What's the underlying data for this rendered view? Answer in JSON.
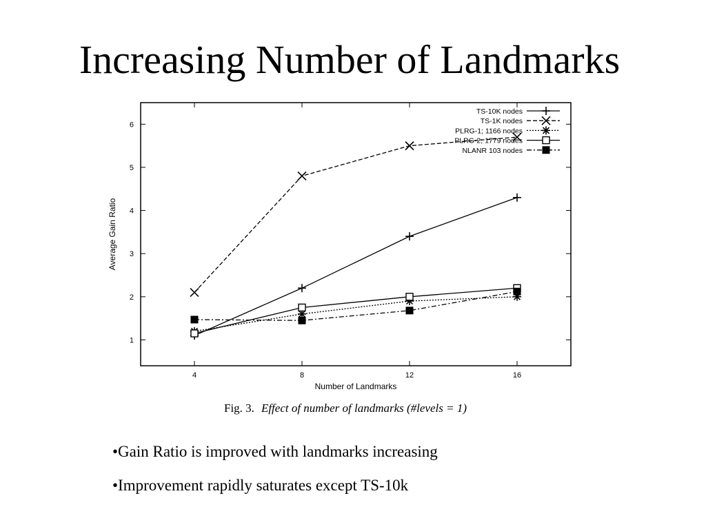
{
  "slide": {
    "title": "Increasing Number of Landmarks",
    "caption_prefix": "Fig. 3.",
    "caption_text": "Effect of number of landmarks (#levels = 1)",
    "bullets": [
      "•Gain Ratio is improved with landmarks increasing",
      "•Improvement rapidly saturates except TS-10k"
    ]
  },
  "chart_data": {
    "type": "line",
    "xlabel": "Number of Landmarks",
    "ylabel": "Average Gain Ratio",
    "xlim": [
      2,
      18
    ],
    "ylim": [
      0.4,
      6.5
    ],
    "x_ticks": [
      4,
      8,
      12,
      16
    ],
    "y_ticks": [
      1,
      2,
      3,
      4,
      5,
      6
    ],
    "grid": false,
    "legend_position": "top-right",
    "x": [
      4,
      8,
      12,
      16
    ],
    "series": [
      {
        "name": "TS-10K nodes",
        "marker": "plus",
        "dash": "solid",
        "values": [
          1.1,
          2.2,
          3.4,
          4.3
        ]
      },
      {
        "name": "TS-1K nodes",
        "marker": "cross",
        "dash": "dashed",
        "values": [
          2.1,
          4.8,
          5.5,
          5.7
        ]
      },
      {
        "name": "PLRG-1; 1166 nodes",
        "marker": "star",
        "dash": "dotted",
        "values": [
          1.2,
          1.6,
          1.9,
          2.0
        ]
      },
      {
        "name": "PLRG-2; 1779 nodes",
        "marker": "open-square",
        "dash": "solid",
        "values": [
          1.15,
          1.75,
          2.0,
          2.2
        ]
      },
      {
        "name": "NLANR 103 nodes",
        "marker": "filled-square",
        "dash": "dashdot",
        "values": [
          1.47,
          1.45,
          1.68,
          2.12
        ]
      }
    ]
  }
}
